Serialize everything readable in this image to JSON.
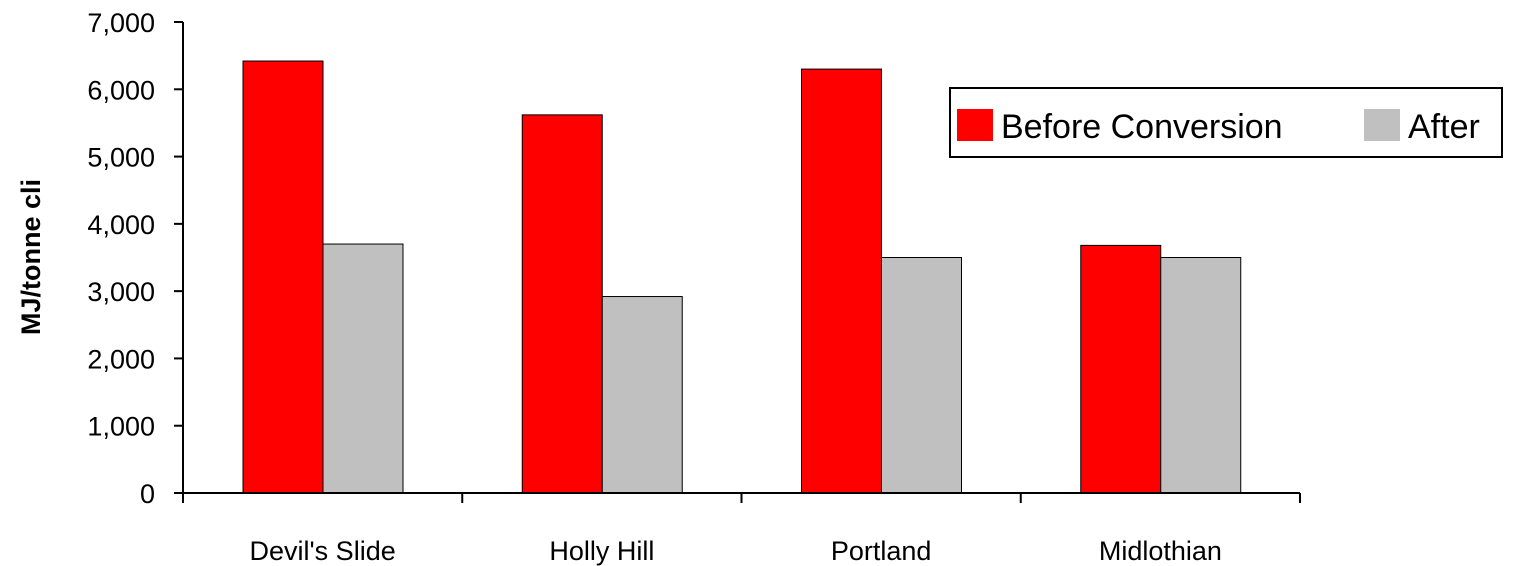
{
  "chart_data": {
    "type": "bar",
    "title": "",
    "xlabel": "",
    "ylabel": "MJ/tonne cli",
    "ylim": [
      0,
      7000
    ],
    "yticks": [
      0,
      1000,
      2000,
      3000,
      4000,
      5000,
      6000,
      7000
    ],
    "ytick_labels": [
      "0",
      "1,000",
      "2,000",
      "3,000",
      "4,000",
      "5,000",
      "6,000",
      "7,000"
    ],
    "categories": [
      "Devil's Slide",
      "Holly Hill",
      "Portland",
      "Midlothian"
    ],
    "series": [
      {
        "name": "Before Conversion",
        "color": "#ff0000",
        "values": [
          6420,
          5620,
          6300,
          3680
        ]
      },
      {
        "name": "After",
        "color": "#c0c0c0",
        "values": [
          3700,
          2920,
          3500,
          3500
        ]
      }
    ],
    "grid": false,
    "legend": {
      "placement": "top-right"
    }
  }
}
